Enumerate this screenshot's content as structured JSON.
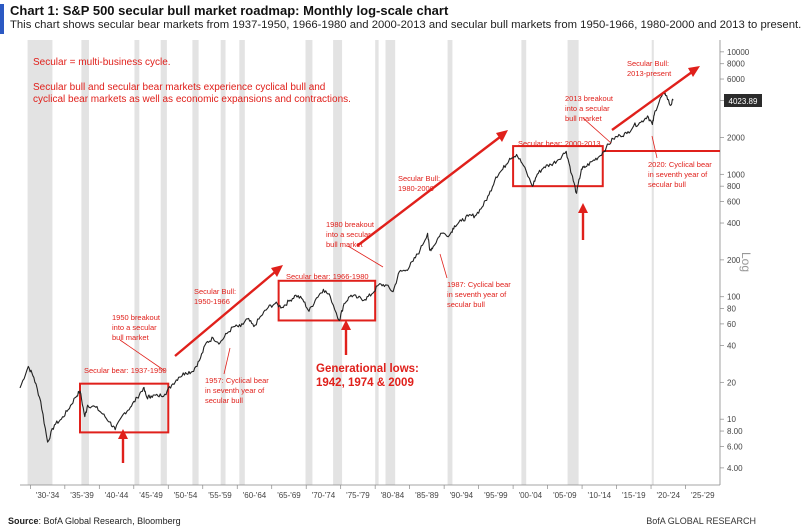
{
  "header": {
    "title": "Chart 1: S&P 500 secular bull market roadmap: Monthly log-scale chart",
    "subtitle": "This chart shows secular bear markets from 1937-1950, 1966-1980 and 2000-2013 and secular bull markets from 1950-1966, 1980-2000 and 2013 to present."
  },
  "footer": {
    "source_label": "Source",
    "source_text": ": BofA Global Research, Bloomberg",
    "brand": "BofA GLOBAL RESEARCH"
  },
  "colors": {
    "annotation_red": "#e0201b",
    "recession_shade": "#e3e3e3",
    "price_line": "#222222",
    "axis_text": "#444444",
    "title_accent": "#2b59c3"
  },
  "chart_data": {
    "type": "line",
    "title": "Chart 1: S&P 500 secular bull market roadmap: Monthly log-scale chart",
    "ylabel": "Log",
    "y_scale": "log",
    "ylim": [
      2.9,
      12500
    ],
    "xlim": [
      1928.5,
      2030
    ],
    "y_ticks": [
      4,
      6,
      8,
      10,
      20,
      40,
      60,
      80,
      100,
      200,
      400,
      600,
      800,
      1000,
      2000,
      4000,
      6000,
      8000,
      10000
    ],
    "y_tick_labels": [
      "4.00",
      "6.00",
      "8.00",
      "10",
      "20",
      "40",
      "60",
      "80",
      "100",
      "200",
      "400",
      "600",
      "800",
      "1000",
      "2000",
      "4000",
      "6000",
      "8000",
      "10000"
    ],
    "x_tick_labels": [
      "'30-'34",
      "'35-'39",
      "'40-'44",
      "'45-'49",
      "'50-'54",
      "'55-'59",
      "'60-'64",
      "'65-'69",
      "'70-'74",
      "'75-'79",
      "'80-'84",
      "'85-'89",
      "'90-'94",
      "'95-'99",
      "'00-'04",
      "'05-'09",
      "'10-'14",
      "'15-'19",
      "'20-'24",
      "'25-'29"
    ],
    "x_tick_years": [
      1930,
      1935,
      1940,
      1945,
      1950,
      1955,
      1960,
      1965,
      1970,
      1975,
      1980,
      1985,
      1990,
      1995,
      2000,
      2005,
      2010,
      2015,
      2020,
      2025
    ],
    "last_value_label": "4023.89",
    "series": [
      {
        "x": [
          1928.5,
          1929.7,
          1930.5,
          1931.5,
          1932.5,
          1933.5,
          1934.5,
          1935.5,
          1936.5,
          1937.2,
          1937.9,
          1938.3,
          1939.5,
          1940.5,
          1941.5,
          1942.3,
          1943.5,
          1944.5,
          1945.5,
          1946.4,
          1946.9,
          1947.5,
          1948.5,
          1949.5,
          1950.5,
          1951.5,
          1952.5,
          1953.5,
          1954.5,
          1955.5,
          1956.5,
          1957.5,
          1958.5,
          1959.5,
          1960.5,
          1961.5,
          1962.4,
          1963.5,
          1964.5,
          1965.5,
          1966.5,
          1967.5,
          1968.5,
          1969.5,
          1970.4,
          1971.5,
          1972.5,
          1973.5,
          1974.8,
          1975.5,
          1976.5,
          1977.5,
          1978.5,
          1979.5,
          1980.5,
          1981.5,
          1982.6,
          1983.5,
          1984.5,
          1985.5,
          1986.5,
          1987.6,
          1987.9,
          1988.5,
          1989.5,
          1990.8,
          1991.5,
          1992.5,
          1993.5,
          1994.5,
          1995.5,
          1996.5,
          1997.5,
          1998.5,
          1999.5,
          2000.5,
          2001.5,
          2002.8,
          2003.5,
          2004.5,
          2005.5,
          2006.5,
          2007.7,
          2008.5,
          2009.2,
          2009.9,
          2010.5,
          2011.5,
          2012.5,
          2013.5,
          2014.5,
          2015.5,
          2016.5,
          2017.5,
          2018.5,
          2019.5,
          2020.2,
          2020.6,
          2021.5,
          2022.0,
          2022.8,
          2023.2
        ],
        "y": [
          18,
          27,
          22,
          14,
          6.5,
          9,
          10,
          12,
          15,
          17,
          10.5,
          13,
          12.5,
          11,
          9.5,
          8.2,
          11,
          12.5,
          15,
          18,
          15,
          15.5,
          15.5,
          16,
          19,
          22,
          24,
          24.5,
          30,
          42,
          46,
          42,
          50,
          57,
          57,
          66,
          57,
          70,
          82,
          88,
          82,
          92,
          103,
          95,
          76,
          98,
          115,
          100,
          64,
          88,
          103,
          98,
          95,
          105,
          125,
          125,
          110,
          160,
          165,
          195,
          240,
          330,
          240,
          260,
          330,
          320,
          380,
          415,
          455,
          460,
          540,
          680,
          950,
          1100,
          1350,
          1450,
          1180,
          800,
          1000,
          1150,
          1200,
          1310,
          1540,
          1000,
          700,
          1100,
          1150,
          1280,
          1400,
          1650,
          1950,
          2080,
          2150,
          2500,
          2650,
          3000,
          2550,
          3300,
          4300,
          4700,
          3650,
          4023.89
        ]
      }
    ],
    "recession_shading": [
      [
        1929.6,
        1933.2
      ],
      [
        1937.4,
        1938.5
      ],
      [
        1945.1,
        1945.8
      ],
      [
        1948.9,
        1949.8
      ],
      [
        1953.5,
        1954.4
      ],
      [
        1957.6,
        1958.3
      ],
      [
        1960.3,
        1961.1
      ],
      [
        1969.9,
        1970.9
      ],
      [
        1973.9,
        1975.2
      ],
      [
        1980.0,
        1980.5
      ],
      [
        1981.5,
        1982.9
      ],
      [
        1990.5,
        1991.2
      ],
      [
        2001.2,
        2001.9
      ],
      [
        2007.9,
        2009.5
      ],
      [
        2020.1,
        2020.4
      ]
    ],
    "secular_bear_boxes": [
      {
        "label": "Secular bear: 1937-1950",
        "x": [
          1937.2,
          1950.0
        ],
        "y": [
          7.8,
          19.5
        ]
      },
      {
        "label": "Secular bear: 1966-1980",
        "x": [
          1966.0,
          1980.0
        ],
        "y": [
          64,
          135
        ]
      },
      {
        "label": "Secular bear: 2000-2013",
        "x": [
          2000.0,
          2013.0
        ],
        "y": [
          800,
          1700
        ]
      }
    ],
    "horizontal_line": {
      "y": 1550,
      "x": [
        2013.0,
        2030
      ]
    },
    "annotations": [
      {
        "text": "Secular = multi-business cycle.",
        "kind": "note"
      },
      {
        "text": "Secular bull and secular bear markets experience cyclical bull and",
        "kind": "note"
      },
      {
        "text": "cyclical bear markets as well as economic expansions and contractions.",
        "kind": "note"
      },
      {
        "text": "1950 breakout",
        "kind": "label"
      },
      {
        "text": "into a secular",
        "kind": "label"
      },
      {
        "text": "bull market",
        "kind": "label"
      },
      {
        "text": "Secular Bull:",
        "kind": "label"
      },
      {
        "text": "1950-1966",
        "kind": "label"
      },
      {
        "text": "1957: Cyclical bear",
        "kind": "label"
      },
      {
        "text": "in seventh year of",
        "kind": "label"
      },
      {
        "text": "secular bull",
        "kind": "label"
      },
      {
        "text": "1980 breakout",
        "kind": "label"
      },
      {
        "text": "into a secular",
        "kind": "label"
      },
      {
        "text": "bull market",
        "kind": "label"
      },
      {
        "text": "Secular Bull:",
        "kind": "label"
      },
      {
        "text": "1980-2000",
        "kind": "label"
      },
      {
        "text": "1987: Cyclical bear",
        "kind": "label"
      },
      {
        "text": "in seventh year of",
        "kind": "label"
      },
      {
        "text": "secular bull",
        "kind": "label"
      },
      {
        "text": "2013 breakout",
        "kind": "label"
      },
      {
        "text": "into a secular",
        "kind": "label"
      },
      {
        "text": "bull market",
        "kind": "label"
      },
      {
        "text": "Secular Bull:",
        "kind": "label"
      },
      {
        "text": "2013-present",
        "kind": "label"
      },
      {
        "text": "2020: Cyclical bear",
        "kind": "label"
      },
      {
        "text": "in seventh year of",
        "kind": "label"
      },
      {
        "text": "secular bull",
        "kind": "label"
      },
      {
        "text": "Generational lows:",
        "kind": "highlight"
      },
      {
        "text": "1942, 1974 & 2009",
        "kind": "highlight"
      }
    ]
  }
}
